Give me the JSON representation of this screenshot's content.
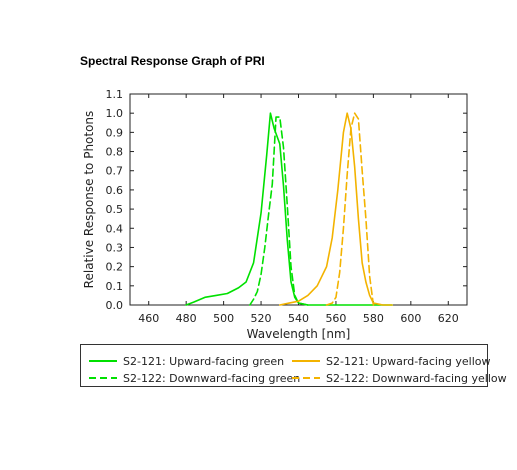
{
  "chart_data": {
    "type": "line",
    "title": "Spectral Response Graph of PRI",
    "xlabel": "Wavelength [nm]",
    "ylabel": "Relative Response to Photons",
    "xlim": [
      450,
      630
    ],
    "ylim": [
      0.0,
      1.1
    ],
    "xticks": [
      460,
      480,
      500,
      520,
      540,
      560,
      580,
      600,
      620
    ],
    "yticks": [
      0.0,
      0.1,
      0.2,
      0.3,
      0.4,
      0.5,
      0.6,
      0.7,
      0.8,
      0.9,
      1.0,
      1.1
    ],
    "grid": false,
    "legend_position": "below",
    "series": [
      {
        "name": "S2-121: Upward-facing green",
        "color": "#00e000",
        "dash": "solid",
        "x": [
          480,
          484,
          490,
          496,
          502,
          508,
          512,
          516,
          520,
          523,
          525,
          527,
          530,
          532,
          534,
          536,
          538,
          540,
          545,
          550,
          560,
          590
        ],
        "y": [
          0.0,
          0.015,
          0.04,
          0.05,
          0.06,
          0.09,
          0.12,
          0.22,
          0.48,
          0.78,
          1.0,
          0.92,
          0.84,
          0.62,
          0.34,
          0.12,
          0.04,
          0.01,
          0.0,
          0.0,
          0.0,
          0.0
        ]
      },
      {
        "name": "S2-122: Downward-facing green",
        "color": "#00e000",
        "dash": "dashed",
        "x": [
          514,
          516,
          518,
          520,
          522,
          524,
          526,
          528,
          530,
          532,
          534,
          536,
          538,
          540,
          545
        ],
        "y": [
          0.0,
          0.03,
          0.07,
          0.16,
          0.3,
          0.47,
          0.63,
          0.98,
          0.98,
          0.82,
          0.52,
          0.2,
          0.05,
          0.01,
          0.0
        ]
      },
      {
        "name": "S2-121: Upward-facing yellow",
        "color": "#f3b300",
        "dash": "solid",
        "x": [
          530,
          535,
          540,
          545,
          550,
          555,
          558,
          561,
          564,
          566,
          568,
          570,
          572,
          574,
          576,
          578,
          580,
          585,
          590
        ],
        "y": [
          0.0,
          0.01,
          0.02,
          0.05,
          0.1,
          0.2,
          0.35,
          0.6,
          0.9,
          1.0,
          0.92,
          0.72,
          0.45,
          0.22,
          0.12,
          0.05,
          0.01,
          0.0,
          0.0
        ]
      },
      {
        "name": "S2-122: Downward-facing yellow",
        "color": "#f3b300",
        "dash": "dashed",
        "x": [
          555,
          558,
          560,
          562,
          564,
          566,
          568,
          570,
          572,
          574,
          576,
          578,
          580
        ],
        "y": [
          0.0,
          0.01,
          0.04,
          0.17,
          0.4,
          0.68,
          0.92,
          1.0,
          0.97,
          0.7,
          0.45,
          0.15,
          0.0
        ]
      }
    ]
  }
}
